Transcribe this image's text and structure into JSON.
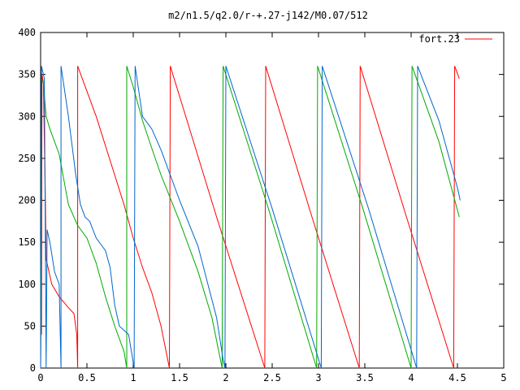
{
  "chart_data": {
    "type": "line",
    "title": "m2/n1.5/q2.0/r-+.27-j142/M0.07/512",
    "xlabel": "",
    "ylabel": "",
    "xlim": [
      0,
      5
    ],
    "ylim": [
      0,
      400
    ],
    "xticks": [
      0,
      0.5,
      1,
      1.5,
      2,
      2.5,
      3,
      3.5,
      4,
      4.5,
      5
    ],
    "xtick_labels": [
      "0",
      "0.5",
      "1",
      "1.5",
      "2",
      "2.5",
      "3",
      "3.5",
      "4",
      "4.5",
      "5"
    ],
    "yticks": [
      0,
      50,
      100,
      150,
      200,
      250,
      300,
      350,
      400
    ],
    "ytick_labels": [
      "0",
      "50",
      "100",
      "150",
      "200",
      "250",
      "300",
      "350",
      "400"
    ],
    "grid": false,
    "legend_position": "top-right",
    "series": [
      {
        "name": "fort.23",
        "color": "#ff0000",
        "points": [
          [
            0.0,
            0
          ],
          [
            0.005,
            90
          ],
          [
            0.01,
            40
          ],
          [
            0.015,
            350
          ],
          [
            0.03,
            340
          ],
          [
            0.05,
            210
          ],
          [
            0.06,
            130
          ],
          [
            0.08,
            120
          ],
          [
            0.12,
            100
          ],
          [
            0.2,
            85
          ],
          [
            0.3,
            72
          ],
          [
            0.36,
            65
          ],
          [
            0.39,
            40
          ],
          [
            0.4,
            0
          ],
          [
            0.4,
            360
          ],
          [
            0.5,
            330
          ],
          [
            0.6,
            300
          ],
          [
            0.7,
            265
          ],
          [
            0.8,
            230
          ],
          [
            0.9,
            195
          ],
          [
            1.0,
            155
          ],
          [
            1.1,
            120
          ],
          [
            1.2,
            90
          ],
          [
            1.3,
            50
          ],
          [
            1.39,
            0
          ],
          [
            1.4,
            360
          ],
          [
            1.9,
            180
          ],
          [
            2.42,
            0
          ],
          [
            2.43,
            360
          ],
          [
            2.93,
            180
          ],
          [
            3.44,
            0
          ],
          [
            3.45,
            360
          ],
          [
            3.95,
            180
          ],
          [
            4.46,
            0
          ],
          [
            4.47,
            360
          ],
          [
            4.52,
            345
          ]
        ]
      },
      {
        "name": "",
        "color": "#00aa00",
        "points": [
          [
            0.0,
            0
          ],
          [
            0.01,
            345
          ],
          [
            0.03,
            340
          ],
          [
            0.06,
            300
          ],
          [
            0.1,
            285
          ],
          [
            0.2,
            255
          ],
          [
            0.3,
            195
          ],
          [
            0.4,
            170
          ],
          [
            0.5,
            155
          ],
          [
            0.6,
            125
          ],
          [
            0.7,
            85
          ],
          [
            0.8,
            50
          ],
          [
            0.9,
            20
          ],
          [
            0.93,
            0
          ],
          [
            0.93,
            360
          ],
          [
            1.0,
            335
          ],
          [
            1.1,
            295
          ],
          [
            1.2,
            262
          ],
          [
            1.3,
            230
          ],
          [
            1.5,
            175
          ],
          [
            1.7,
            115
          ],
          [
            1.85,
            60
          ],
          [
            1.96,
            0
          ],
          [
            1.97,
            360
          ],
          [
            2.46,
            190
          ],
          [
            2.98,
            0
          ],
          [
            2.99,
            360
          ],
          [
            3.48,
            190
          ],
          [
            4.0,
            0
          ],
          [
            4.01,
            360
          ],
          [
            4.3,
            270
          ],
          [
            4.52,
            180
          ]
        ]
      },
      {
        "name": "",
        "color": "#0066cc",
        "points": [
          [
            0.0,
            0
          ],
          [
            0.01,
            360
          ],
          [
            0.04,
            345
          ],
          [
            0.06,
            0
          ],
          [
            0.07,
            165
          ],
          [
            0.1,
            150
          ],
          [
            0.15,
            115
          ],
          [
            0.2,
            100
          ],
          [
            0.22,
            0
          ],
          [
            0.22,
            360
          ],
          [
            0.3,
            300
          ],
          [
            0.38,
            230
          ],
          [
            0.43,
            195
          ],
          [
            0.48,
            180
          ],
          [
            0.53,
            175
          ],
          [
            0.6,
            155
          ],
          [
            0.7,
            140
          ],
          [
            0.75,
            120
          ],
          [
            0.8,
            75
          ],
          [
            0.85,
            50
          ],
          [
            0.9,
            45
          ],
          [
            0.95,
            40
          ],
          [
            1.01,
            0
          ],
          [
            1.02,
            360
          ],
          [
            1.1,
            300
          ],
          [
            1.2,
            285
          ],
          [
            1.3,
            260
          ],
          [
            1.5,
            200
          ],
          [
            1.7,
            145
          ],
          [
            1.9,
            60
          ],
          [
            1.97,
            10
          ],
          [
            1.99,
            0
          ],
          [
            2.0,
            360
          ],
          [
            2.5,
            190
          ],
          [
            3.03,
            0
          ],
          [
            3.04,
            360
          ],
          [
            3.54,
            190
          ],
          [
            4.06,
            0
          ],
          [
            4.07,
            360
          ],
          [
            4.3,
            295
          ],
          [
            4.5,
            215
          ],
          [
            4.53,
            200
          ]
        ]
      }
    ]
  }
}
